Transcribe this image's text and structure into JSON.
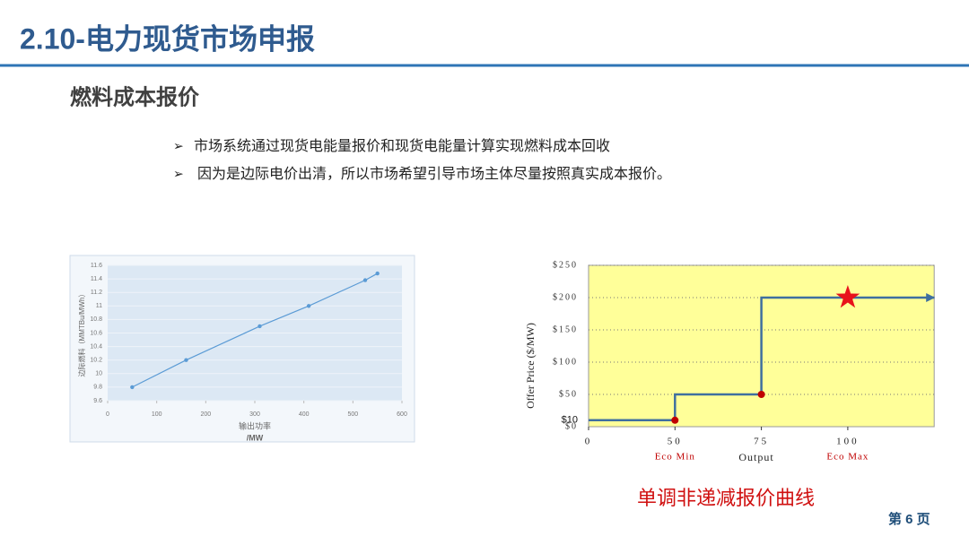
{
  "header": {
    "title": "2.10-电力现货市场申报"
  },
  "subtitle": "燃料成本报价",
  "bullets": [
    "市场系统通过现货电能量报价和现货电能量计算实现燃料成本回收",
    "因为是边际电价出清，所以市场希望引导市场主体尽量按照真实成本报价。"
  ],
  "chart_data": [
    {
      "type": "line",
      "ylabel": "边际燃料（MMTBu/MWh）",
      "xlabel": [
        "输出功率",
        "/MW"
      ],
      "x": [
        50,
        160,
        310,
        410,
        525,
        550
      ],
      "series": [
        {
          "color": "#5b9bd5",
          "values": [
            9.8,
            10.2,
            10.7,
            11.0,
            11.38,
            11.48
          ]
        }
      ],
      "xlim": [
        0,
        600
      ],
      "xticks": [
        0,
        100,
        200,
        300,
        400,
        500,
        600
      ],
      "ylim": [
        9.6,
        11.6
      ],
      "yticks": [
        9.6,
        9.8,
        10,
        10.2,
        10.4,
        10.6,
        10.8,
        11,
        11.2,
        11.4,
        11.6
      ],
      "grid": true
    },
    {
      "type": "step",
      "ylabel": "Offer Price ($/MW)",
      "xlabel": "Output",
      "x": [
        0,
        50,
        50,
        75,
        75,
        125
      ],
      "series": [
        {
          "color": "#3f6f9f",
          "values": [
            10,
            10,
            50,
            50,
            200,
            200
          ]
        }
      ],
      "markers": [
        {
          "x": 50,
          "y": 10,
          "shape": "circle",
          "color": "#c00000"
        },
        {
          "x": 75,
          "y": 50,
          "shape": "circle",
          "color": "#c00000"
        },
        {
          "x": 100,
          "y": 200,
          "shape": "star",
          "color": "#e8121b"
        }
      ],
      "annotations": [
        {
          "text": "Eco Min",
          "x": 50
        },
        {
          "text": "Eco Max",
          "x": 100
        },
        {
          "text": "$10",
          "y": 10
        }
      ],
      "xlim": [
        0,
        125
      ],
      "xticks": [
        0,
        50,
        75,
        100
      ],
      "ylim": [
        0,
        250
      ],
      "yticks": [
        {
          "value": 0,
          "label": "$0"
        },
        {
          "value": 50,
          "label": "$50"
        },
        {
          "value": 100,
          "label": "$100"
        },
        {
          "value": 150,
          "label": "$150"
        },
        {
          "value": 200,
          "label": "$200"
        },
        {
          "value": 250,
          "label": "$250"
        }
      ],
      "grid": true,
      "background": "#ffff99"
    }
  ],
  "caption": "单调非递减报价曲线",
  "page": "第 6 页"
}
